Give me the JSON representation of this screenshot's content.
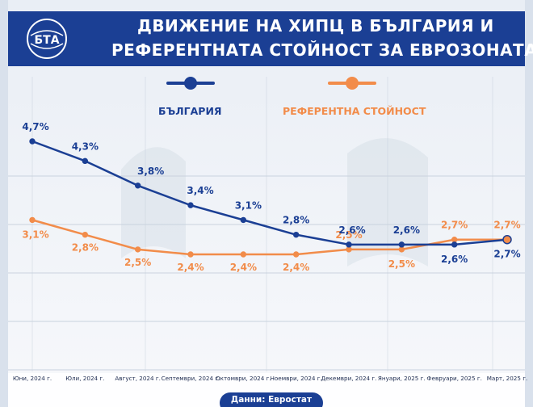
{
  "header": {
    "logo_text": "БТА",
    "title_line1": "ДВИЖЕНИЕ НА ХИПЦ В БЪЛГАРИЯ И",
    "title_line2": "РЕФЕРЕНТНАТА СТОЙНОСТ ЗА ЕВРОЗОНАТА"
  },
  "colors": {
    "header_bg": "#1b3f94",
    "bulgaria": "#1b3f94",
    "reference": "#f28c4a"
  },
  "chart_data": {
    "type": "line",
    "categories": [
      "Юни, 2024 г.",
      "Юли, 2024 г.",
      "Август, 2024 г.",
      "Септември, 2024 г.",
      "Октомври, 2024 г.",
      "Ноември, 2024 г.",
      "Декември, 2024 г.",
      "Януари, 2025 г.",
      "Февруари, 2025 г.",
      "Март, 2025 г."
    ],
    "series": [
      {
        "name": "БЪЛГАРИЯ",
        "values": [
          4.7,
          4.3,
          3.8,
          3.4,
          3.1,
          2.8,
          2.6,
          2.6,
          2.6,
          2.7
        ],
        "labels": [
          "4,7%",
          "4,3%",
          "3,8%",
          "3,4%",
          "3,1%",
          "2,8%",
          "2,6%",
          "2,6%",
          "2,6%",
          "2,7%"
        ],
        "color": "#1b3f94"
      },
      {
        "name": "РЕФЕРЕНТНА СТОЙНОСТ",
        "values": [
          3.1,
          2.8,
          2.5,
          2.4,
          2.4,
          2.4,
          2.5,
          2.5,
          2.7,
          2.7
        ],
        "labels": [
          "3,1%",
          "2,8%",
          "2,5%",
          "2,4%",
          "2,4%",
          "2,4%",
          "2,5%",
          "2,5%",
          "2,7%",
          "2,7%"
        ],
        "color": "#f28c4a"
      }
    ],
    "legend": "top"
  },
  "footer": {
    "source": "Данни: Евростат"
  }
}
